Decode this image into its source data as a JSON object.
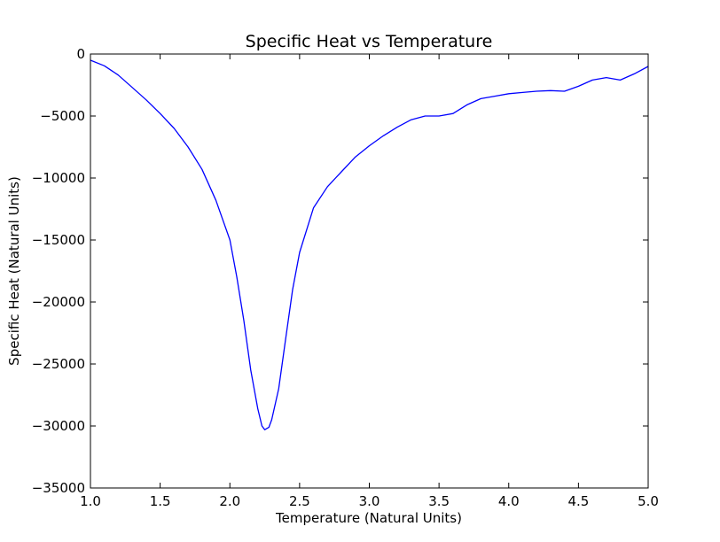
{
  "chart_data": {
    "type": "line",
    "title": "Specific Heat vs Temperature",
    "xlabel": "Temperature (Natural Units)",
    "ylabel": "Specific Heat (Natural Units)",
    "xlim": [
      1.0,
      5.0
    ],
    "ylim": [
      -35000,
      0
    ],
    "xticks": [
      "1.0",
      "1.5",
      "2.0",
      "2.5",
      "3.0",
      "3.5",
      "4.0",
      "4.5",
      "5.0"
    ],
    "yticks": [
      "0",
      "−5000",
      "−10000",
      "−15000",
      "−20000",
      "−25000",
      "−30000",
      "−35000"
    ],
    "grid": false,
    "line_color": "#0000ff",
    "series": [
      {
        "x": [
          1.0,
          1.1,
          1.2,
          1.3,
          1.4,
          1.5,
          1.6,
          1.7,
          1.8,
          1.9,
          2.0,
          2.05,
          2.1,
          2.15,
          2.2,
          2.23,
          2.25,
          2.28,
          2.3,
          2.35,
          2.4,
          2.45,
          2.5,
          2.6,
          2.7,
          2.8,
          2.9,
          3.0,
          3.1,
          3.2,
          3.3,
          3.4,
          3.5,
          3.6,
          3.7,
          3.8,
          3.9,
          4.0,
          4.1,
          4.2,
          4.3,
          4.4,
          4.5,
          4.6,
          4.7,
          4.8,
          4.9,
          5.0
        ],
        "y": [
          -500,
          -950,
          -1700,
          -2700,
          -3700,
          -4800,
          -6000,
          -7500,
          -9300,
          -11800,
          -15000,
          -18000,
          -21500,
          -25500,
          -28600,
          -30000,
          -30300,
          -30100,
          -29500,
          -27000,
          -23000,
          -19000,
          -16000,
          -12400,
          -10700,
          -9500,
          -8300,
          -7400,
          -6600,
          -5900,
          -5300,
          -5000,
          -5000,
          -4800,
          -4100,
          -3600,
          -3400,
          -3200,
          -3100,
          -3000,
          -2950,
          -3000,
          -2600,
          -2100,
          -1900,
          -2100,
          -1600,
          -1000
        ]
      }
    ]
  }
}
